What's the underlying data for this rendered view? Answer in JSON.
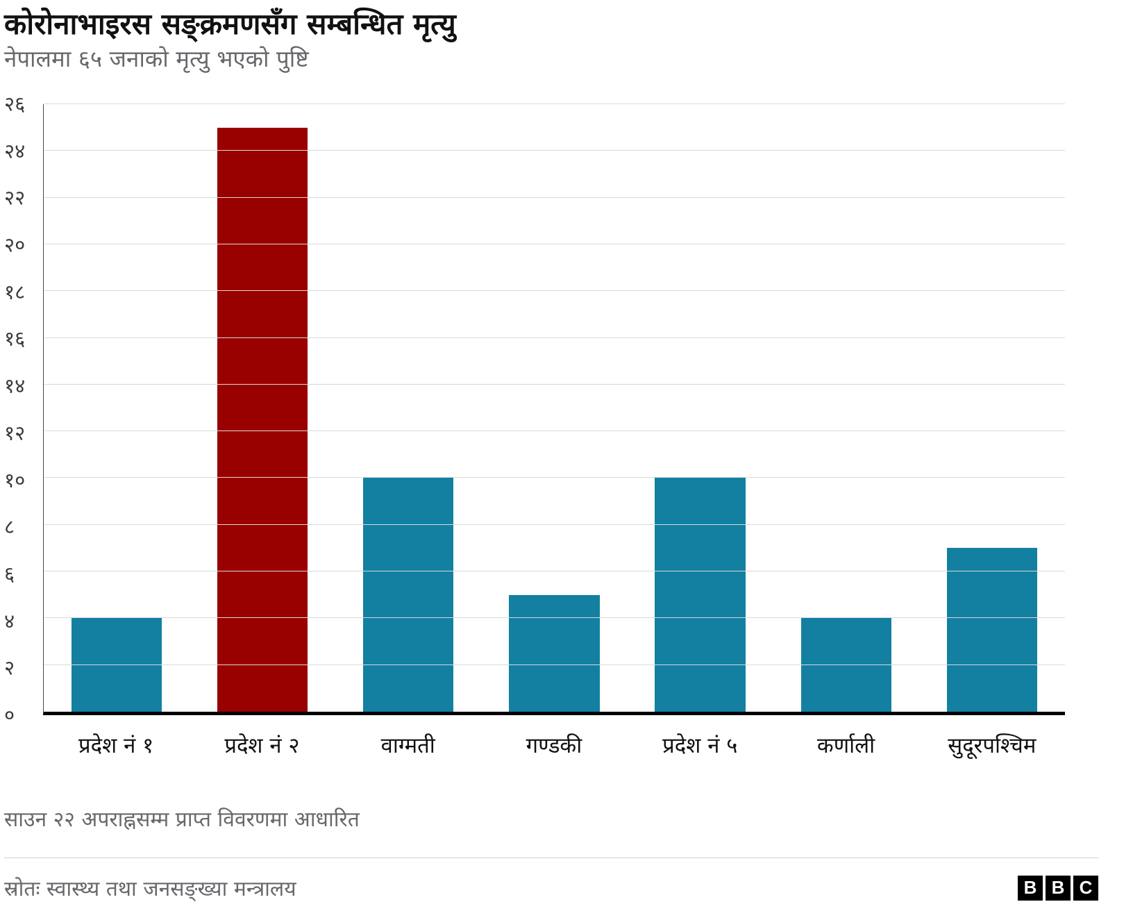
{
  "header": {
    "title": "कोरोनाभाइरस सङ्क्रमणसँग सम्बन्धित मृत्यु",
    "subtitle": "नेपालमा ६५ जनाको मृत्यु भएको पुष्टि"
  },
  "chart_data": {
    "type": "bar",
    "title": "कोरोनाभाइरस सङ्क्रमणसँग सम्बन्धित मृत्यु",
    "subtitle": "नेपालमा ६५ जनाको मृत्यु भएको पुष्टि",
    "categories": [
      "प्रदेश नं १",
      "प्रदेश नं २",
      "वाग्मती",
      "गण्डकी",
      "प्रदेश नं ५",
      "कर्णाली",
      "सुदूरपश्चिम"
    ],
    "values": [
      4,
      25,
      10,
      5,
      10,
      4,
      7
    ],
    "bar_colors": [
      "#1380A1",
      "#990000",
      "#1380A1",
      "#1380A1",
      "#1380A1",
      "#1380A1",
      "#1380A1"
    ],
    "xlabel": "",
    "ylabel": "",
    "ylim": [
      0,
      26
    ],
    "grid": true,
    "legend": false,
    "yticks": [
      {
        "value": 0,
        "label": "०"
      },
      {
        "value": 2,
        "label": "२"
      },
      {
        "value": 4,
        "label": "४"
      },
      {
        "value": 6,
        "label": "६"
      },
      {
        "value": 8,
        "label": "८"
      },
      {
        "value": 10,
        "label": "१०"
      },
      {
        "value": 12,
        "label": "१२"
      },
      {
        "value": 14,
        "label": "१४"
      },
      {
        "value": 16,
        "label": "१६"
      },
      {
        "value": 18,
        "label": "१८"
      },
      {
        "value": 20,
        "label": "२०"
      },
      {
        "value": 22,
        "label": "२२"
      },
      {
        "value": 24,
        "label": "२४"
      },
      {
        "value": 26,
        "label": "२६"
      }
    ]
  },
  "footer": {
    "note": "साउन २२ अपराह्नसम्म प्राप्त विवरणमा आधारित",
    "source": "स्रोतः स्वास्थ्य तथा जनसङ्ख्या मन्त्रालय",
    "logo_letters": [
      "B",
      "B",
      "C"
    ]
  }
}
